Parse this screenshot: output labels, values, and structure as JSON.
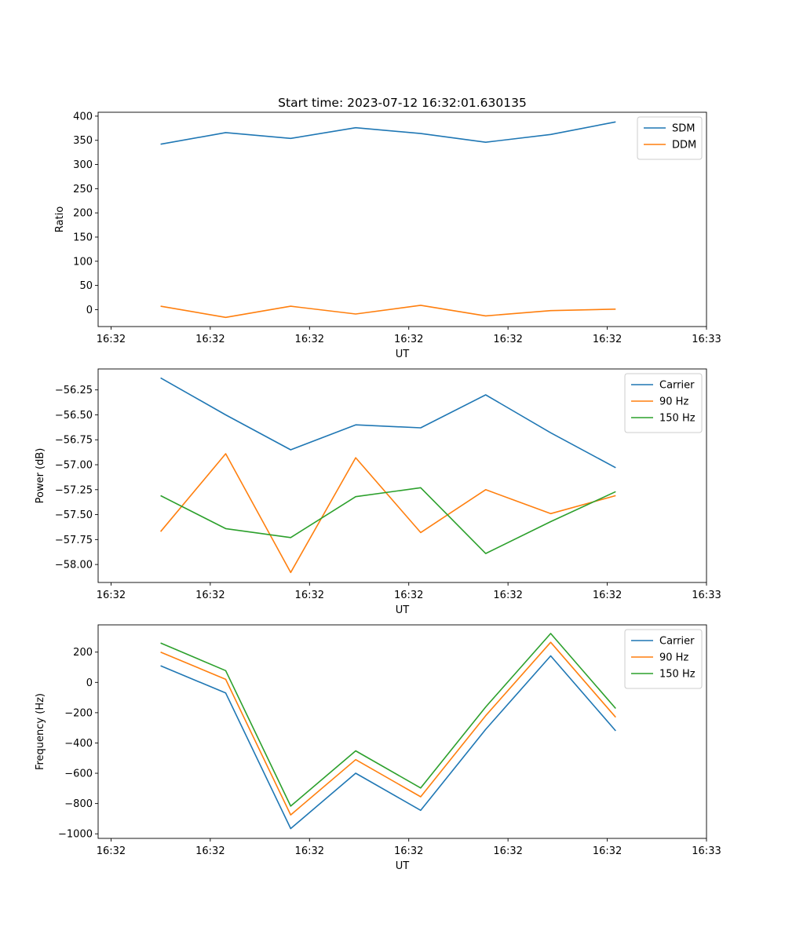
{
  "figure_title": "Start time: 2023-07-12 16:32:01.630135",
  "chart_data": [
    {
      "type": "line",
      "title": "Start time: 2023-07-12 16:32:01.630135",
      "xlabel": "UT",
      "ylabel": "Ratio",
      "x_tick_labels": [
        "16:32",
        "16:32",
        "16:32",
        "16:32",
        "16:32",
        "16:32",
        "16:33"
      ],
      "x_ticks": [
        0,
        1,
        2,
        3,
        4,
        5,
        6
      ],
      "xlim": [
        -0.13,
        6.0
      ],
      "ylim": [
        -35,
        408
      ],
      "y_ticks": [
        0,
        50,
        100,
        150,
        200,
        250,
        300,
        350,
        400
      ],
      "y_tick_labels": [
        "0",
        "50",
        "100",
        "150",
        "200",
        "250",
        "300",
        "350",
        "400"
      ],
      "legend_position": "top-right",
      "x": [
        0.5,
        1.155,
        1.81,
        2.465,
        3.12,
        3.775,
        4.43,
        5.085
      ],
      "series": [
        {
          "name": "SDM",
          "color": "#1f77b4",
          "values": [
            342,
            366,
            354,
            376,
            364,
            346,
            362,
            388
          ]
        },
        {
          "name": "DDM",
          "color": "#ff7f0e",
          "values": [
            7,
            -16,
            7,
            -9,
            9,
            -13,
            -2,
            1
          ]
        }
      ]
    },
    {
      "type": "line",
      "title": "",
      "xlabel": "UT",
      "ylabel": "Power (dB)",
      "x_tick_labels": [
        "16:32",
        "16:32",
        "16:32",
        "16:32",
        "16:32",
        "16:32",
        "16:33"
      ],
      "x_ticks": [
        0,
        1,
        2,
        3,
        4,
        5,
        6
      ],
      "xlim": [
        -0.13,
        6.0
      ],
      "ylim": [
        -58.18,
        -56.04
      ],
      "y_ticks": [
        -58.0,
        -57.75,
        -57.5,
        -57.25,
        -57.0,
        -56.75,
        -56.5,
        -56.25
      ],
      "y_tick_labels": [
        "−58.00",
        "−57.75",
        "−57.50",
        "−57.25",
        "−57.00",
        "−56.75",
        "−56.50",
        "−56.25"
      ],
      "legend_position": "top-right",
      "x": [
        0.5,
        1.155,
        1.81,
        2.465,
        3.12,
        3.775,
        4.43,
        5.085
      ],
      "series": [
        {
          "name": "Carrier",
          "color": "#1f77b4",
          "values": [
            -56.13,
            -56.5,
            -56.85,
            -56.6,
            -56.63,
            -56.3,
            -56.68,
            -57.03
          ]
        },
        {
          "name": "90 Hz",
          "color": "#ff7f0e",
          "values": [
            -57.67,
            -56.89,
            -58.08,
            -56.93,
            -57.68,
            -57.25,
            -57.49,
            -57.31
          ]
        },
        {
          "name": "150 Hz",
          "color": "#2ca02c",
          "values": [
            -57.31,
            -57.64,
            -57.73,
            -57.32,
            -57.23,
            -57.89,
            -57.57,
            -57.27
          ]
        }
      ]
    },
    {
      "type": "line",
      "title": "",
      "xlabel": "UT",
      "ylabel": "Frequency (Hz)",
      "x_tick_labels": [
        "16:32",
        "16:32",
        "16:32",
        "16:32",
        "16:32",
        "16:32",
        "16:33"
      ],
      "x_ticks": [
        0,
        1,
        2,
        3,
        4,
        5,
        6
      ],
      "xlim": [
        -0.13,
        6.0
      ],
      "ylim": [
        -1030,
        380
      ],
      "y_ticks": [
        -1000,
        -800,
        -600,
        -400,
        -200,
        0,
        200
      ],
      "y_tick_labels": [
        "−1000",
        "−800",
        "−600",
        "−400",
        "−200",
        "0",
        "200"
      ],
      "legend_position": "top-right",
      "x": [
        0.5,
        1.155,
        1.81,
        2.465,
        3.12,
        3.775,
        4.43,
        5.085
      ],
      "series": [
        {
          "name": "Carrier",
          "color": "#1f77b4",
          "values": [
            110,
            -70,
            -965,
            -600,
            -845,
            -310,
            175,
            -320
          ]
        },
        {
          "name": "90 Hz",
          "color": "#ff7f0e",
          "values": [
            200,
            20,
            -875,
            -510,
            -755,
            -220,
            265,
            -230
          ]
        },
        {
          "name": "150 Hz",
          "color": "#2ca02c",
          "values": [
            260,
            78,
            -817,
            -452,
            -697,
            -162,
            323,
            -172
          ]
        }
      ]
    }
  ]
}
